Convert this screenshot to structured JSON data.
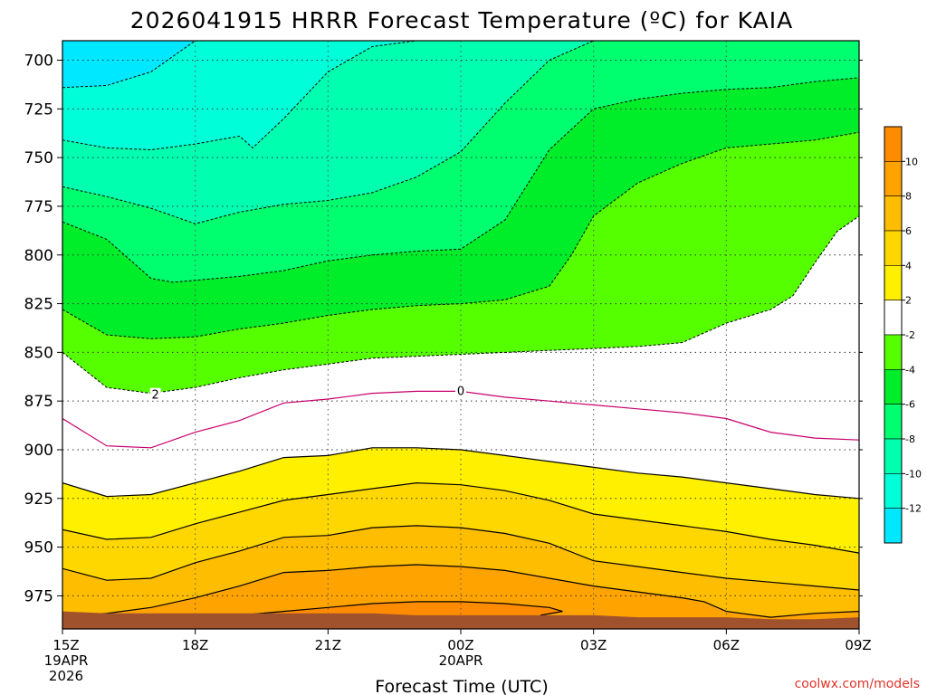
{
  "chart_data": {
    "type": "contour",
    "title": "2026041915 HRRR Forecast Temperature (ºC) for KAIA",
    "xlabel": "Forecast Time (UTC)",
    "ylabel": "",
    "credit": "coolwx.com/models",
    "x_ticks": [
      {
        "hour": 0,
        "lines": [
          "15Z",
          "19APR",
          "2026"
        ]
      },
      {
        "hour": 3,
        "lines": [
          "18Z"
        ]
      },
      {
        "hour": 6,
        "lines": [
          "21Z"
        ]
      },
      {
        "hour": 9,
        "lines": [
          "00Z",
          "20APR"
        ]
      },
      {
        "hour": 12,
        "lines": [
          "03Z"
        ]
      },
      {
        "hour": 15,
        "lines": [
          "06Z"
        ]
      },
      {
        "hour": 18,
        "lines": [
          "09Z"
        ]
      }
    ],
    "xlim_hours": [
      0,
      18
    ],
    "y_ticks": [
      700,
      725,
      750,
      775,
      800,
      825,
      850,
      875,
      900,
      925,
      950,
      975
    ],
    "ylim_hPa": [
      690,
      992
    ],
    "y_axis_inverted": true,
    "grid": true,
    "contour_interval_C": 2,
    "contour_labels": [
      {
        "text": "2",
        "hour": 2.1,
        "p": 872
      },
      {
        "text": "0",
        "hour": 9.0,
        "p": 870
      }
    ],
    "colorbar": {
      "labels": [
        "10",
        "8",
        "6",
        "4",
        "2",
        "-2",
        "-4",
        "-6",
        "-8",
        "-10",
        "-12"
      ],
      "bins": [
        {
          "lo": 10,
          "hi": 12,
          "color": "#ff8c00"
        },
        {
          "lo": 8,
          "hi": 10,
          "color": "#ffa300"
        },
        {
          "lo": 6,
          "hi": 8,
          "color": "#ffbd00"
        },
        {
          "lo": 4,
          "hi": 6,
          "color": "#ffd700"
        },
        {
          "lo": 2,
          "hi": 4,
          "color": "#fff000"
        },
        {
          "lo": -2,
          "hi": 2,
          "color": "#ffffff"
        },
        {
          "lo": -4,
          "hi": -2,
          "color": "#55ff00"
        },
        {
          "lo": -6,
          "hi": -4,
          "color": "#00ee2a"
        },
        {
          "lo": -8,
          "hi": -6,
          "color": "#00ff6e"
        },
        {
          "lo": -10,
          "hi": -8,
          "color": "#00ffae"
        },
        {
          "lo": -12,
          "hi": -10,
          "color": "#00ffd8"
        },
        {
          "lo": -14,
          "hi": -12,
          "color": "#00e8ff"
        }
      ]
    },
    "ground_color": "#a0522d",
    "surface_pressure_hPa": {
      "hours": [
        0,
        1,
        2,
        3,
        4,
        5,
        6,
        7,
        8,
        9,
        10,
        11,
        12,
        13,
        14,
        15,
        16,
        17,
        18
      ],
      "values": [
        983,
        984,
        984,
        984,
        984,
        984,
        984,
        984,
        985,
        985,
        985,
        985,
        985,
        986,
        986,
        986,
        987,
        987,
        986
      ]
    },
    "isotherms": [
      {
        "temp": -12,
        "style": "dashed",
        "hours": [
          0,
          1,
          2,
          3
        ],
        "p": [
          714,
          713,
          706,
          690
        ]
      },
      {
        "temp": -10,
        "style": "dashed",
        "hours": [
          0,
          1,
          2,
          3,
          4,
          4.3,
          5,
          6,
          7,
          8
        ],
        "p": [
          741,
          745,
          746,
          743,
          739,
          745,
          730,
          706,
          693,
          690
        ]
      },
      {
        "temp": -8,
        "style": "dashed",
        "hours": [
          0,
          1,
          2,
          3,
          4,
          5,
          6,
          7,
          8,
          9,
          10,
          11,
          12
        ],
        "p": [
          765,
          770,
          776,
          784,
          778,
          774,
          772,
          768,
          760,
          747,
          722,
          700,
          690
        ]
      },
      {
        "temp": -6,
        "style": "dashed",
        "hours": [
          0,
          1,
          2,
          2.5,
          3,
          4,
          5,
          6,
          7,
          8,
          9,
          10,
          11,
          12,
          13,
          14,
          15,
          16,
          17,
          18
        ],
        "p": [
          783,
          792,
          812,
          814,
          813,
          811,
          808,
          803,
          800,
          798,
          797,
          782,
          746,
          725,
          720,
          717,
          715,
          714,
          711,
          709
        ]
      },
      {
        "temp": -4,
        "style": "dashed",
        "hours": [
          0,
          1,
          2,
          3,
          4,
          5,
          6,
          7,
          8,
          9,
          10,
          11,
          11.5,
          12,
          13,
          14,
          15,
          16,
          17,
          18
        ],
        "p": [
          828,
          841,
          843,
          842,
          838,
          835,
          831,
          828,
          826,
          825,
          823,
          816,
          800,
          780,
          763,
          753,
          745,
          743,
          741,
          737
        ]
      },
      {
        "temp": -2,
        "style": "dashed",
        "hours": [
          0,
          1,
          2,
          3,
          4,
          5,
          6,
          7,
          8,
          9,
          10,
          11,
          12,
          13,
          14,
          15,
          16,
          16.5,
          17,
          17.5,
          18
        ],
        "p": [
          850,
          868,
          871,
          868,
          863,
          859,
          856,
          853,
          852,
          851,
          850,
          849,
          848,
          847,
          845,
          835,
          828,
          821,
          804,
          788,
          780
        ]
      },
      {
        "temp": 0,
        "style": "solid",
        "color": "#c8006e",
        "hours": [
          0,
          1,
          2,
          3,
          4,
          5,
          6,
          7,
          8,
          9,
          10,
          11,
          12,
          13,
          14,
          15,
          16,
          17,
          18
        ],
        "p": [
          884,
          898,
          899,
          891,
          885,
          876,
          874,
          871,
          870,
          870,
          873,
          875,
          877,
          879,
          881,
          884,
          891,
          894,
          895
        ]
      },
      {
        "temp": 2,
        "style": "solid",
        "hours": [
          0,
          1,
          2,
          3,
          4,
          5,
          6,
          7,
          8,
          9,
          10,
          11,
          12,
          13,
          14,
          15,
          16,
          17,
          18
        ],
        "p": [
          917,
          924,
          923,
          917,
          911,
          904,
          903,
          899,
          899,
          900,
          903,
          906,
          909,
          912,
          914,
          917,
          920,
          923,
          925
        ]
      },
      {
        "temp": 4,
        "style": "solid",
        "hours": [
          0,
          1,
          2,
          3,
          4,
          5,
          6,
          7,
          8,
          9,
          10,
          11,
          12,
          13,
          14,
          15,
          16,
          17,
          18
        ],
        "p": [
          941,
          946,
          945,
          938,
          932,
          926,
          923,
          920,
          917,
          918,
          921,
          926,
          933,
          936,
          939,
          942,
          946,
          949,
          953
        ]
      },
      {
        "temp": 6,
        "style": "solid",
        "hours": [
          0,
          1,
          2,
          3,
          4,
          5,
          6,
          7,
          8,
          9,
          10,
          11,
          12,
          13,
          14,
          15,
          16,
          17,
          18
        ],
        "p": [
          961,
          967,
          966,
          958,
          952,
          945,
          944,
          940,
          939,
          940,
          943,
          948,
          957,
          960,
          963,
          966,
          968,
          970,
          972
        ]
      },
      {
        "temp": 8,
        "style": "solid",
        "hours": [
          0,
          1,
          2,
          3,
          4,
          5,
          6,
          7,
          8,
          9,
          10,
          11,
          12,
          13,
          14,
          14.5,
          15,
          16,
          17,
          18
        ],
        "p": [
          985,
          984,
          981,
          976,
          970,
          963,
          962,
          960,
          959,
          960,
          962,
          966,
          970,
          973,
          976,
          978,
          983,
          986,
          984,
          983
        ]
      },
      {
        "temp": 10,
        "style": "solid",
        "hours": [
          4,
          5,
          6,
          7,
          8,
          9,
          10,
          11,
          11.3,
          10.8
        ],
        "p": [
          985,
          983,
          981,
          979,
          978,
          978,
          979,
          981,
          983,
          985
        ]
      }
    ]
  }
}
